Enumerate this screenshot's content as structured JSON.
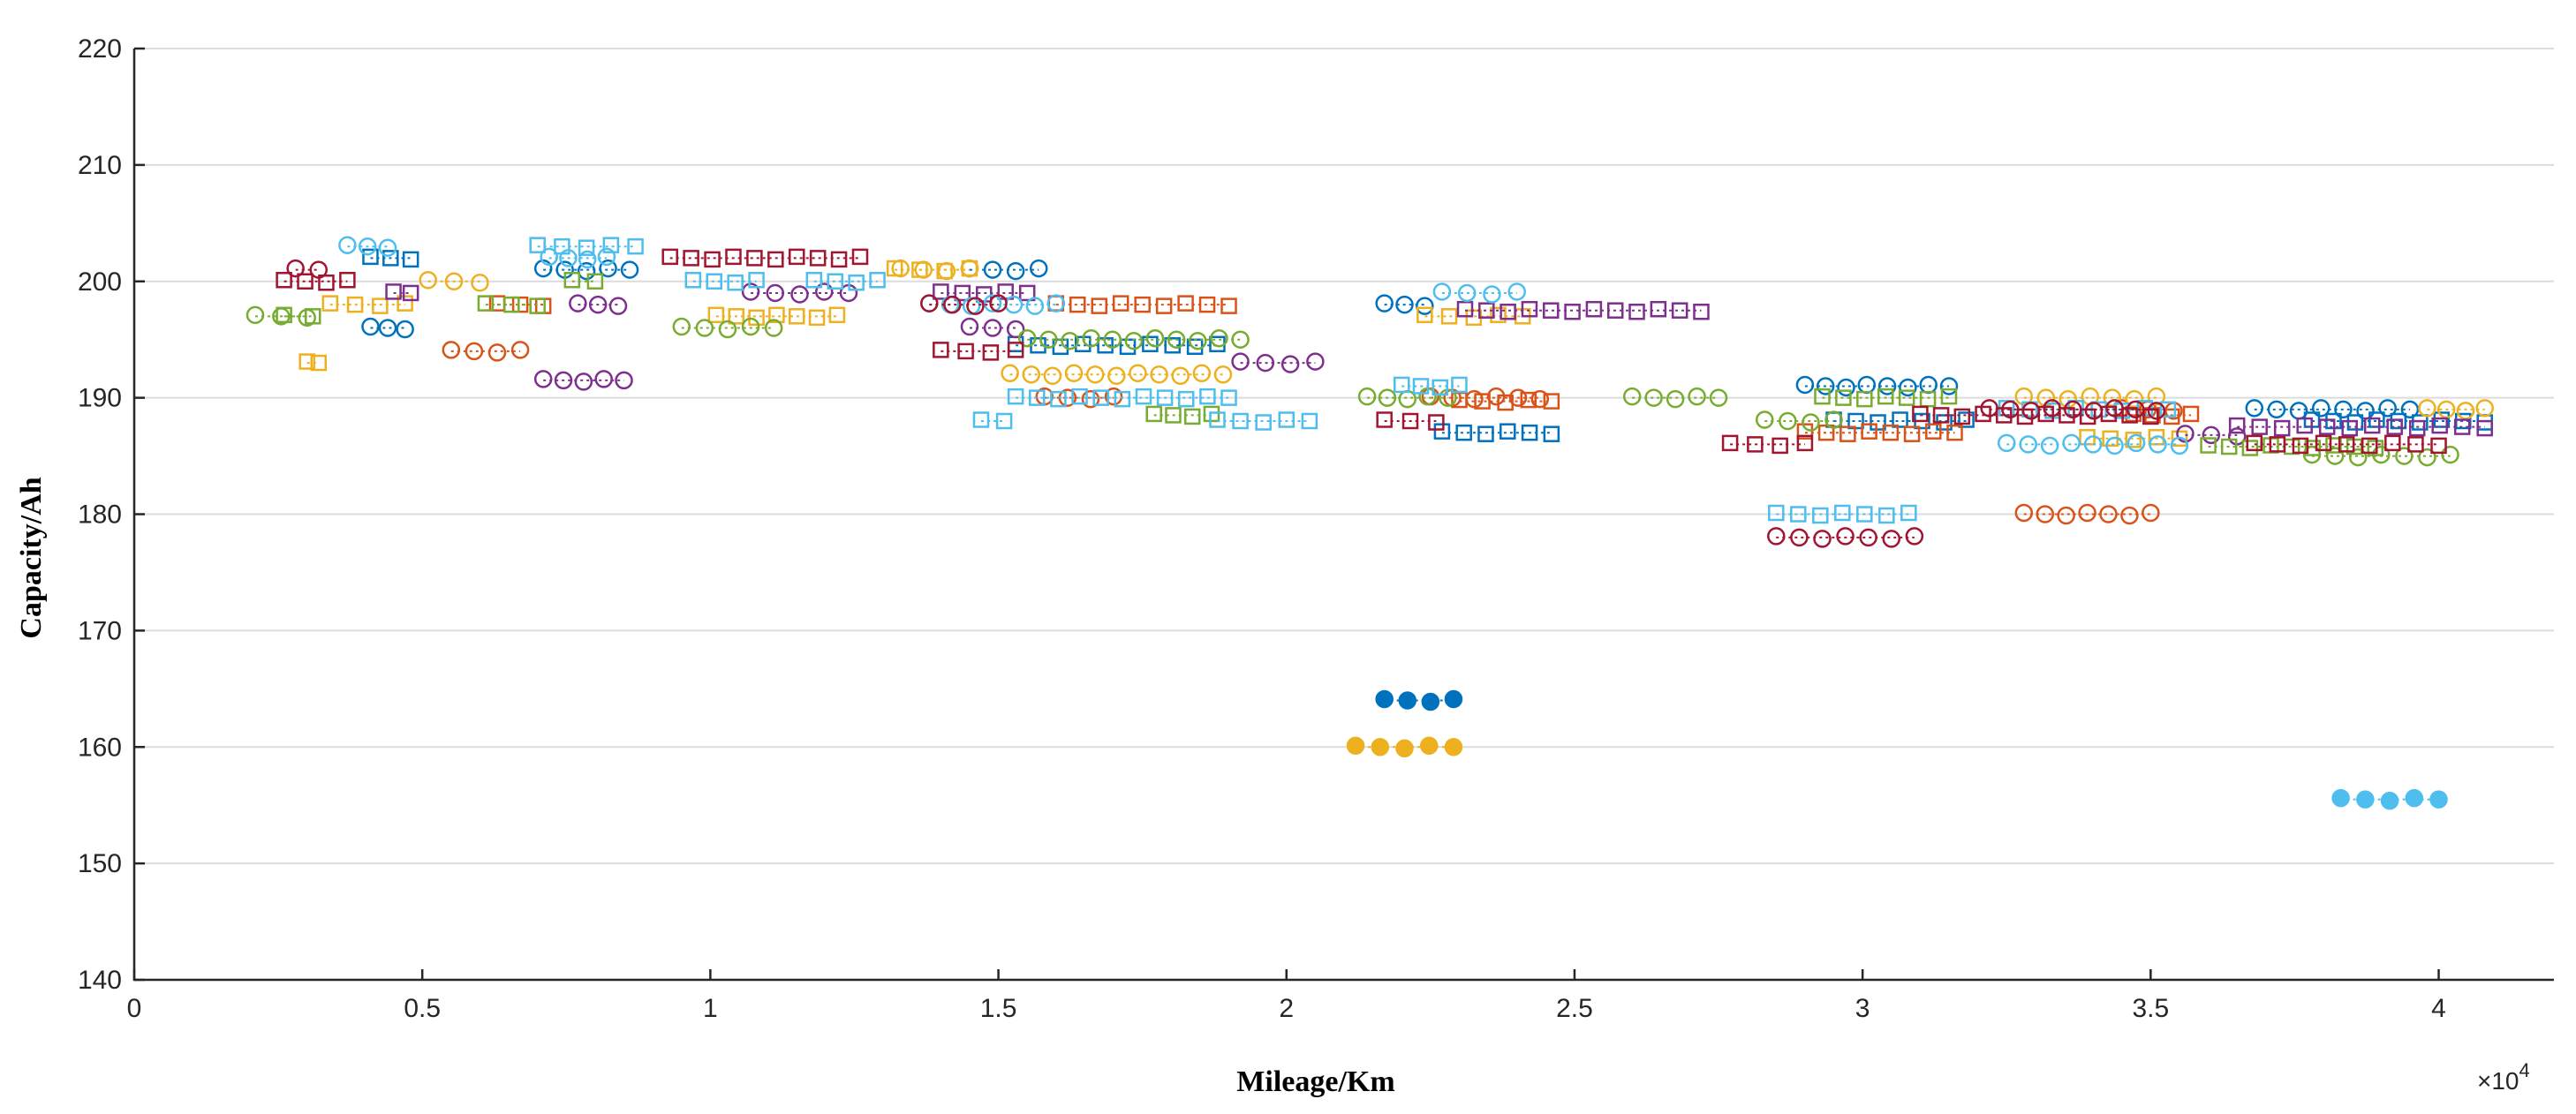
{
  "chart_data": {
    "type": "scatter",
    "title": "",
    "xlabel": "Mileage/Km",
    "ylabel": "Capacity/Ah",
    "x_exponent_label": "×10",
    "x_exponent_power": "4",
    "xlim": [
      0,
      42000
    ],
    "ylim": [
      140,
      220
    ],
    "x_ticks": [
      0,
      5000,
      10000,
      15000,
      20000,
      25000,
      30000,
      35000,
      40000
    ],
    "x_tick_labels": [
      "0",
      "0.5",
      "1",
      "1.5",
      "2",
      "2.5",
      "3",
      "3.5",
      "4"
    ],
    "y_ticks": [
      140,
      150,
      160,
      170,
      180,
      190,
      200,
      210,
      220
    ],
    "y_tick_labels": [
      "140",
      "150",
      "160",
      "170",
      "180",
      "190",
      "200",
      "210",
      "220"
    ],
    "grid": "horizontal",
    "series": [
      {
        "name": "blue circles",
        "color": "#0072BD",
        "marker": "o",
        "filled": false,
        "segments": [
          {
            "x0": 4100,
            "x1": 4700,
            "y": 196
          },
          {
            "x0": 7100,
            "x1": 8600,
            "y": 201
          },
          {
            "x0": 14500,
            "x1": 15700,
            "y": 201
          },
          {
            "x0": 21700,
            "x1": 22400,
            "y": 198
          },
          {
            "x0": 29000,
            "x1": 31500,
            "y": 191
          },
          {
            "x0": 36800,
            "x1": 39500,
            "y": 189
          }
        ]
      },
      {
        "name": "blue squares",
        "color": "#0072BD",
        "marker": "s",
        "filled": false,
        "segments": [
          {
            "x0": 4100,
            "x1": 4800,
            "y": 202
          },
          {
            "x0": 15300,
            "x1": 18800,
            "y": 194.5
          },
          {
            "x0": 22700,
            "x1": 24600,
            "y": 187
          },
          {
            "x0": 29500,
            "x1": 31800,
            "y": 188
          },
          {
            "x0": 37800,
            "x1": 40800,
            "y": 188
          }
        ]
      },
      {
        "name": "orange circles",
        "color": "#D95319",
        "marker": "o",
        "filled": false,
        "segments": [
          {
            "x0": 5500,
            "x1": 6700,
            "y": 194
          },
          {
            "x0": 15800,
            "x1": 17000,
            "y": 190
          },
          {
            "x0": 22500,
            "x1": 24400,
            "y": 190
          },
          {
            "x0": 32800,
            "x1": 35000,
            "y": 180
          },
          {
            "x0": 34500,
            "x1": 35400,
            "y": 189
          }
        ]
      },
      {
        "name": "orange squares",
        "color": "#D95319",
        "marker": "s",
        "filled": false,
        "segments": [
          {
            "x0": 6300,
            "x1": 7100,
            "y": 198
          },
          {
            "x0": 16000,
            "x1": 19000,
            "y": 198
          },
          {
            "x0": 23000,
            "x1": 24600,
            "y": 189.7
          },
          {
            "x0": 29000,
            "x1": 31600,
            "y": 187
          },
          {
            "x0": 34700,
            "x1": 35700,
            "y": 188.5
          }
        ]
      },
      {
        "name": "yellow circles",
        "color": "#EDB120",
        "marker": "o",
        "filled": false,
        "segments": [
          {
            "x0": 5100,
            "x1": 6000,
            "y": 200
          },
          {
            "x0": 13300,
            "x1": 14500,
            "y": 201
          },
          {
            "x0": 15200,
            "x1": 18900,
            "y": 192
          },
          {
            "x0": 32800,
            "x1": 35100,
            "y": 190
          },
          {
            "x0": 39800,
            "x1": 40800,
            "y": 189
          }
        ]
      },
      {
        "name": "yellow squares",
        "color": "#EDB120",
        "marker": "s",
        "filled": false,
        "segments": [
          {
            "x0": 3000,
            "x1": 3200,
            "y": 193
          },
          {
            "x0": 3400,
            "x1": 4700,
            "y": 198
          },
          {
            "x0": 10100,
            "x1": 12200,
            "y": 197
          },
          {
            "x0": 13200,
            "x1": 14500,
            "y": 201
          },
          {
            "x0": 22400,
            "x1": 24100,
            "y": 197
          },
          {
            "x0": 33900,
            "x1": 35500,
            "y": 186.5
          }
        ]
      },
      {
        "name": "purple circles",
        "color": "#7E2F8E",
        "marker": "o",
        "filled": false,
        "segments": [
          {
            "x0": 7100,
            "x1": 8500,
            "y": 191.5
          },
          {
            "x0": 7700,
            "x1": 8400,
            "y": 198
          },
          {
            "x0": 10700,
            "x1": 12400,
            "y": 199
          },
          {
            "x0": 14500,
            "x1": 15300,
            "y": 196
          },
          {
            "x0": 19200,
            "x1": 20500,
            "y": 193
          },
          {
            "x0": 35600,
            "x1": 36500,
            "y": 186.8
          }
        ]
      },
      {
        "name": "purple squares",
        "color": "#7E2F8E",
        "marker": "s",
        "filled": false,
        "segments": [
          {
            "x0": 4500,
            "x1": 4800,
            "y": 199
          },
          {
            "x0": 14000,
            "x1": 15500,
            "y": 199
          },
          {
            "x0": 23100,
            "x1": 27200,
            "y": 197.5
          },
          {
            "x0": 36500,
            "x1": 40800,
            "y": 187.5
          }
        ]
      },
      {
        "name": "green circles",
        "color": "#77AC30",
        "marker": "o",
        "filled": false,
        "segments": [
          {
            "x0": 2100,
            "x1": 3000,
            "y": 197
          },
          {
            "x0": 9500,
            "x1": 11100,
            "y": 196
          },
          {
            "x0": 15500,
            "x1": 19200,
            "y": 195
          },
          {
            "x0": 21400,
            "x1": 22800,
            "y": 190
          },
          {
            "x0": 26000,
            "x1": 27500,
            "y": 190
          },
          {
            "x0": 28300,
            "x1": 29500,
            "y": 188
          },
          {
            "x0": 37800,
            "x1": 40200,
            "y": 185
          }
        ]
      },
      {
        "name": "green squares",
        "color": "#77AC30",
        "marker": "s",
        "filled": false,
        "segments": [
          {
            "x0": 2600,
            "x1": 3100,
            "y": 197
          },
          {
            "x0": 6100,
            "x1": 7000,
            "y": 198
          },
          {
            "x0": 7600,
            "x1": 8000,
            "y": 200
          },
          {
            "x0": 17700,
            "x1": 18700,
            "y": 188.5
          },
          {
            "x0": 29300,
            "x1": 31500,
            "y": 190
          },
          {
            "x0": 36000,
            "x1": 38900,
            "y": 185.8
          }
        ]
      },
      {
        "name": "cyan circles",
        "color": "#4DBEEE",
        "marker": "o",
        "filled": false,
        "segments": [
          {
            "x0": 3700,
            "x1": 4400,
            "y": 203
          },
          {
            "x0": 7200,
            "x1": 8200,
            "y": 202
          },
          {
            "x0": 13800,
            "x1": 16000,
            "y": 198
          },
          {
            "x0": 22700,
            "x1": 24000,
            "y": 199
          },
          {
            "x0": 32500,
            "x1": 35500,
            "y": 186
          }
        ]
      },
      {
        "name": "cyan squares",
        "color": "#4DBEEE",
        "marker": "s",
        "filled": false,
        "segments": [
          {
            "x0": 7000,
            "x1": 8700,
            "y": 203
          },
          {
            "x0": 9700,
            "x1": 10800,
            "y": 200
          },
          {
            "x0": 11800,
            "x1": 12900,
            "y": 200
          },
          {
            "x0": 14700,
            "x1": 15100,
            "y": 188
          },
          {
            "x0": 15300,
            "x1": 19000,
            "y": 190
          },
          {
            "x0": 18800,
            "x1": 20400,
            "y": 188
          },
          {
            "x0": 22000,
            "x1": 23000,
            "y": 191
          },
          {
            "x0": 28500,
            "x1": 30800,
            "y": 180
          },
          {
            "x0": 32500,
            "x1": 35300,
            "y": 189
          }
        ]
      },
      {
        "name": "red circles",
        "color": "#A2142F",
        "marker": "o",
        "filled": false,
        "segments": [
          {
            "x0": 2800,
            "x1": 3200,
            "y": 201
          },
          {
            "x0": 13800,
            "x1": 15000,
            "y": 198
          },
          {
            "x0": 28500,
            "x1": 30900,
            "y": 178
          },
          {
            "x0": 32200,
            "x1": 35100,
            "y": 189
          }
        ]
      },
      {
        "name": "red squares",
        "color": "#A2142F",
        "marker": "s",
        "filled": false,
        "segments": [
          {
            "x0": 2600,
            "x1": 3700,
            "y": 200
          },
          {
            "x0": 9300,
            "x1": 12600,
            "y": 202
          },
          {
            "x0": 14000,
            "x1": 15300,
            "y": 194
          },
          {
            "x0": 21700,
            "x1": 22600,
            "y": 188
          },
          {
            "x0": 27700,
            "x1": 29000,
            "y": 186
          },
          {
            "x0": 31000,
            "x1": 35000,
            "y": 188.5
          },
          {
            "x0": 36800,
            "x1": 40000,
            "y": 186
          }
        ]
      },
      {
        "name": "blue filled",
        "color": "#0072BD",
        "marker": "o",
        "filled": true,
        "segments": [
          {
            "x0": 21700,
            "x1": 22900,
            "y": 164
          }
        ]
      },
      {
        "name": "yellow filled",
        "color": "#EDB120",
        "marker": "o",
        "filled": true,
        "segments": [
          {
            "x0": 21200,
            "x1": 22900,
            "y": 160
          }
        ]
      },
      {
        "name": "cyan filled",
        "color": "#4DBEEE",
        "marker": "o",
        "filled": true,
        "segments": [
          {
            "x0": 38300,
            "x1": 40000,
            "y": 155.5
          }
        ]
      }
    ]
  }
}
